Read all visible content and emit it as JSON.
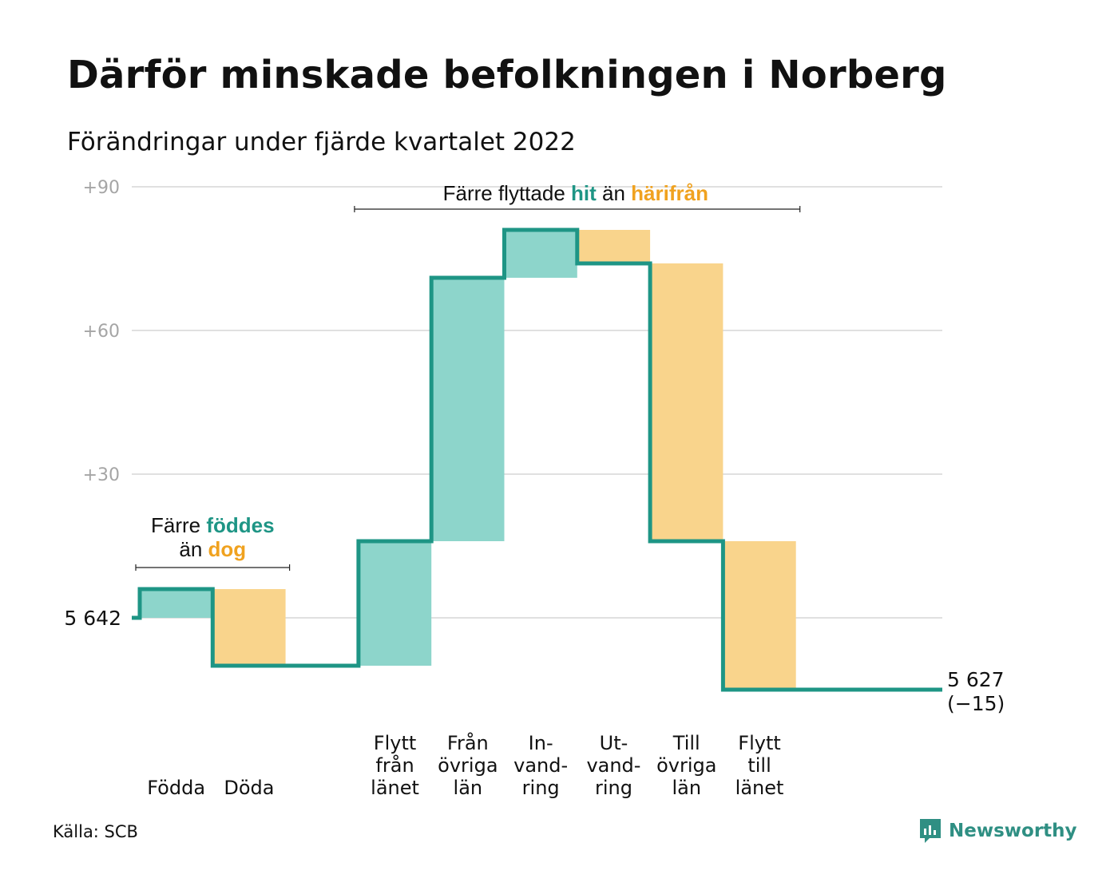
{
  "title": "Därför minskade befolkningen i Norberg",
  "subtitle": "Förändringar under fjärde kvartalet 2022",
  "source": "Källa: SCB",
  "brand": "Newsworthy",
  "colors": {
    "inflow": "#8dd5cb",
    "outflow": "#f9d48c",
    "line": "#1e9585",
    "teal_text": "#1e9585",
    "orange_text": "#f0a21f",
    "grid": "#e0e0e0",
    "tick": "#a5a5a5"
  },
  "chart_data": {
    "type": "waterfall",
    "y_ticks": [
      {
        "value": 30,
        "label": "+30"
      },
      {
        "value": 60,
        "label": "+60"
      },
      {
        "value": 90,
        "label": "+90"
      }
    ],
    "ylim": [
      -20,
      90
    ],
    "grid": true,
    "start": {
      "value": 0,
      "label": "5 642"
    },
    "end": {
      "value": -15,
      "label": "5 627",
      "sublabel": "(−15)"
    },
    "steps": [
      {
        "label": [
          "Födda"
        ],
        "change": 6,
        "kind": "in"
      },
      {
        "label": [
          "Döda"
        ],
        "change": -16,
        "kind": "out"
      },
      {
        "label": [],
        "change": 0,
        "kind": "gap"
      },
      {
        "label": [
          "Flytt",
          "från",
          "länet"
        ],
        "change": 26,
        "kind": "in"
      },
      {
        "label": [
          "Från",
          "övriga",
          "län"
        ],
        "change": 55,
        "kind": "in"
      },
      {
        "label": [
          "In-",
          "vand-",
          "ring"
        ],
        "change": 10,
        "kind": "in"
      },
      {
        "label": [
          "Ut-",
          "vand-",
          "ring"
        ],
        "change": -7,
        "kind": "out"
      },
      {
        "label": [
          "Till",
          "övriga",
          "län"
        ],
        "change": -58,
        "kind": "out"
      },
      {
        "label": [
          "Flytt",
          "till",
          "länet"
        ],
        "change": -31,
        "kind": "out"
      },
      {
        "label": [],
        "change": 0,
        "kind": "gap"
      }
    ],
    "annotations": [
      {
        "id": "births",
        "line1": {
          "pre": "Färre ",
          "hl": "föddes",
          "hl_color": "teal"
        },
        "line2": {
          "pre": "än ",
          "hl": "dog",
          "hl_color": "orange"
        },
        "span": [
          0,
          1
        ]
      },
      {
        "id": "moves",
        "line1": {
          "pre": "Färre flyttade ",
          "hl": "hit",
          "hl_color": "teal",
          "mid": " än ",
          "hl2": "härifrån",
          "hl2_color": "orange"
        },
        "span": [
          3,
          8
        ]
      }
    ]
  }
}
